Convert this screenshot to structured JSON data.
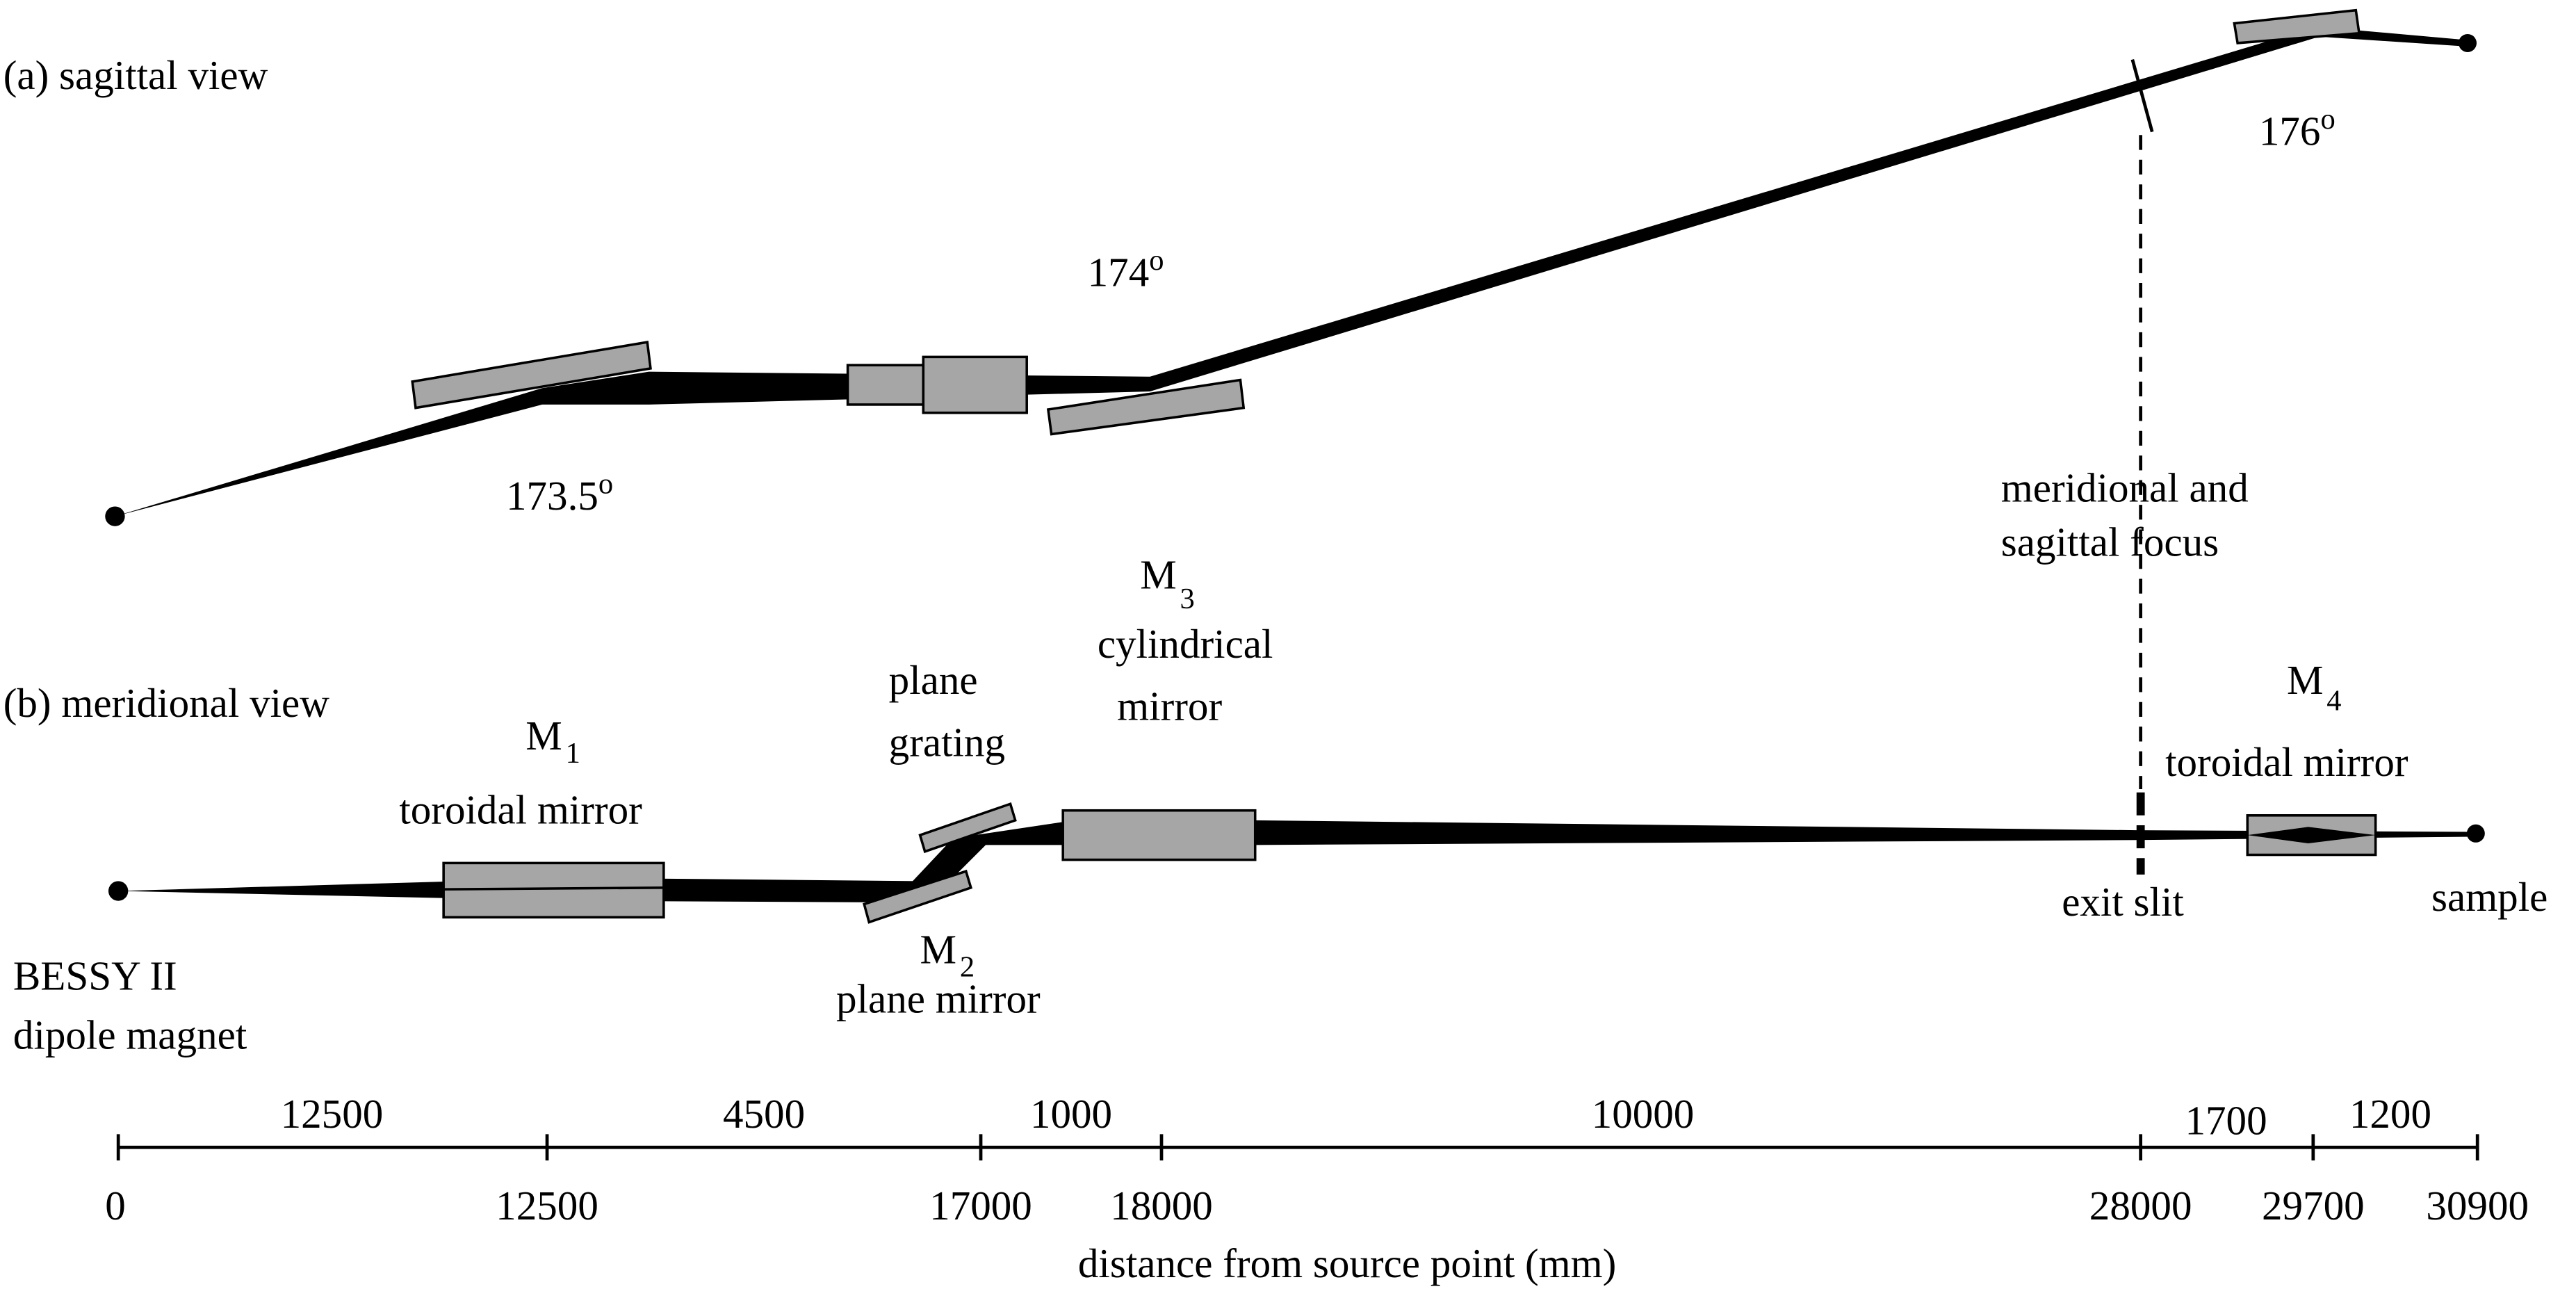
{
  "sagittal_view": {
    "label": "(a) sagittal view",
    "angles": [
      {
        "value": 173.5,
        "sup": "o"
      },
      {
        "value": 174,
        "sup": "o"
      },
      {
        "value": 176,
        "sup": "o"
      }
    ],
    "focus_label": [
      "meridional and",
      "sagittal focus"
    ]
  },
  "meridional_view": {
    "label": "(b) meridional view",
    "components": [
      {
        "symbol": "M",
        "index": "1",
        "lines": [
          "toroidal mirror"
        ]
      },
      {
        "lines": [
          "plane",
          "grating"
        ]
      },
      {
        "symbol": "M",
        "index": "3",
        "lines": [
          "cylindrical",
          "mirror"
        ]
      },
      {
        "symbol": "M",
        "index": "2",
        "lines": [
          "plane mirror"
        ]
      },
      {
        "lines": [
          "exit slit"
        ]
      },
      {
        "symbol": "M",
        "index": "4",
        "lines": [
          "toroidal mirror"
        ]
      },
      {
        "lines": [
          "sample"
        ]
      }
    ]
  },
  "source": [
    "BESSY II",
    "dipole magnet"
  ],
  "axis": {
    "segments": [
      12500,
      4500,
      1000,
      10000,
      1700,
      1200
    ],
    "ticks": [
      0,
      12500,
      17000,
      18000,
      28000,
      29700,
      30900
    ],
    "label": "distance from source point (mm)"
  }
}
